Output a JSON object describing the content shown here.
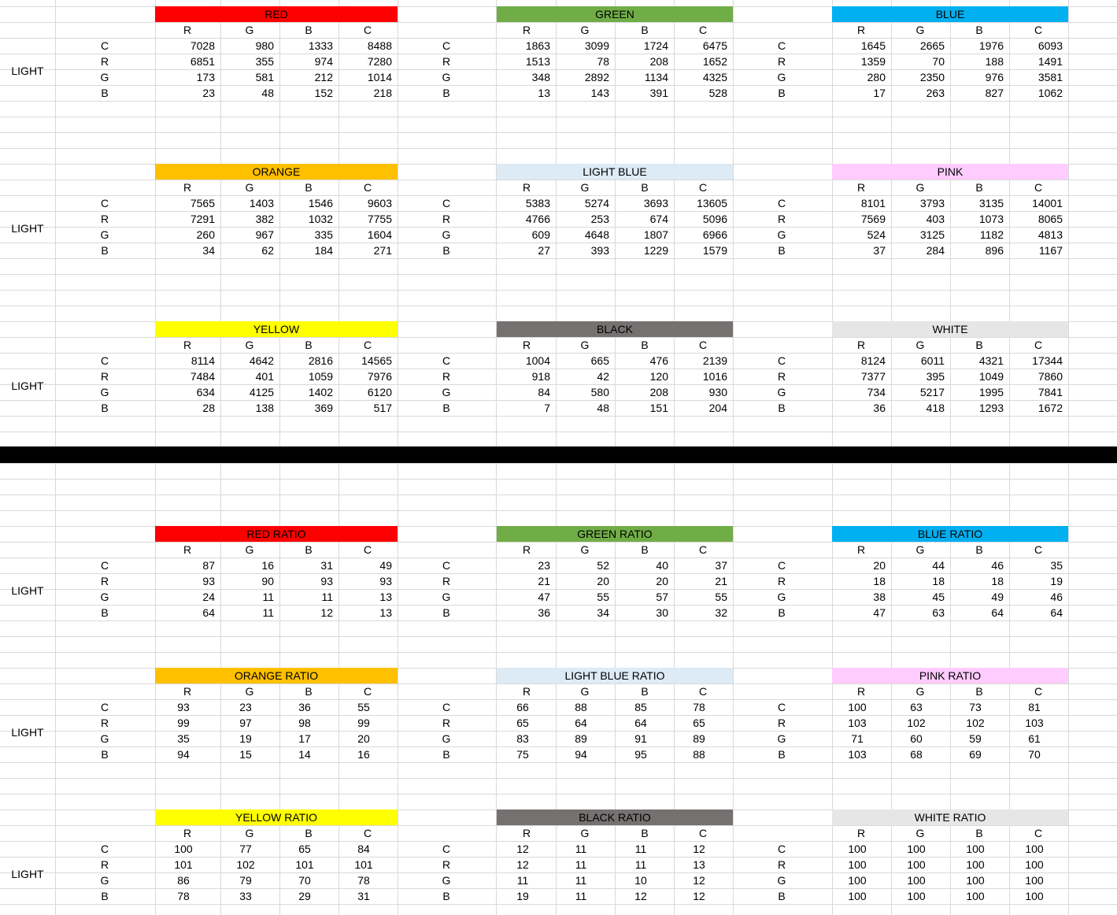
{
  "row_label": "LIGHT",
  "channel_labels": [
    "C",
    "R",
    "G",
    "B"
  ],
  "column_labels": [
    "R",
    "G",
    "B",
    "C"
  ],
  "divider_color": "#000000",
  "sections": [
    {
      "name": "raw",
      "blocks": [
        [
          {
            "title": "RED",
            "bg": "#FF0000",
            "values": [
              [
                "7028",
                "980",
                "1333",
                "8488"
              ],
              [
                "6851",
                "355",
                "974",
                "7280"
              ],
              [
                "173",
                "581",
                "212",
                "1014"
              ],
              [
                "23",
                "48",
                "152",
                "218"
              ]
            ]
          },
          {
            "title": "GREEN",
            "bg": "#70AD47",
            "values": [
              [
                "1863",
                "3099",
                "1724",
                "6475"
              ],
              [
                "1513",
                "78",
                "208",
                "1652"
              ],
              [
                "348",
                "2892",
                "1134",
                "4325"
              ],
              [
                "13",
                "143",
                "391",
                "528"
              ]
            ]
          },
          {
            "title": "BLUE",
            "bg": "#00B0F0",
            "values": [
              [
                "1645",
                "2665",
                "1976",
                "6093"
              ],
              [
                "1359",
                "70",
                "188",
                "1491"
              ],
              [
                "280",
                "2350",
                "976",
                "3581"
              ],
              [
                "17",
                "263",
                "827",
                "1062"
              ]
            ]
          }
        ],
        [
          {
            "title": "ORANGE",
            "bg": "#FFC000",
            "values": [
              [
                "7565",
                "1403",
                "1546",
                "9603"
              ],
              [
                "7291",
                "382",
                "1032",
                "7755"
              ],
              [
                "260",
                "967",
                "335",
                "1604"
              ],
              [
                "34",
                "62",
                "184",
                "271"
              ]
            ]
          },
          {
            "title": "LIGHT BLUE",
            "bg": "#DDEBF7",
            "values": [
              [
                "5383",
                "5274",
                "3693",
                "13605"
              ],
              [
                "4766",
                "253",
                "674",
                "5096"
              ],
              [
                "609",
                "4648",
                "1807",
                "6966"
              ],
              [
                "27",
                "393",
                "1229",
                "1579"
              ]
            ]
          },
          {
            "title": "PINK",
            "bg": "#FFCCFF",
            "values": [
              [
                "8101",
                "3793",
                "3135",
                "14001"
              ],
              [
                "7569",
                "403",
                "1073",
                "8065"
              ],
              [
                "524",
                "3125",
                "1182",
                "4813"
              ],
              [
                "37",
                "284",
                "896",
                "1167"
              ]
            ]
          }
        ],
        [
          {
            "title": "YELLOW",
            "bg": "#FFFF00",
            "values": [
              [
                "8114",
                "4642",
                "2816",
                "14565"
              ],
              [
                "7484",
                "401",
                "1059",
                "7976"
              ],
              [
                "634",
                "4125",
                "1402",
                "6120"
              ],
              [
                "28",
                "138",
                "369",
                "517"
              ]
            ]
          },
          {
            "title": "BLACK",
            "bg": "#767171",
            "values": [
              [
                "1004",
                "665",
                "476",
                "2139"
              ],
              [
                "918",
                "42",
                "120",
                "1016"
              ],
              [
                "84",
                "580",
                "208",
                "930"
              ],
              [
                "7",
                "48",
                "151",
                "204"
              ]
            ]
          },
          {
            "title": "WHITE",
            "bg": "#E7E6E6",
            "values": [
              [
                "8124",
                "6011",
                "4321",
                "17344"
              ],
              [
                "7377",
                "395",
                "1049",
                "7860"
              ],
              [
                "734",
                "5217",
                "1995",
                "7841"
              ],
              [
                "36",
                "418",
                "1293",
                "1672"
              ]
            ]
          }
        ]
      ]
    },
    {
      "name": "ratio",
      "blocks": [
        [
          {
            "title": "RED RATIO",
            "bg": "#FF0000",
            "values": [
              [
                "87",
                "16",
                "31",
                "49"
              ],
              [
                "93",
                "90",
                "93",
                "93"
              ],
              [
                "24",
                "11",
                "11",
                "13"
              ],
              [
                "64",
                "11",
                "12",
                "13"
              ]
            ]
          },
          {
            "title": "GREEN RATIO",
            "bg": "#70AD47",
            "values": [
              [
                "23",
                "52",
                "40",
                "37"
              ],
              [
                "21",
                "20",
                "20",
                "21"
              ],
              [
                "47",
                "55",
                "57",
                "55"
              ],
              [
                "36",
                "34",
                "30",
                "32"
              ]
            ]
          },
          {
            "title": "BLUE RATIO",
            "bg": "#00B0F0",
            "values": [
              [
                "20",
                "44",
                "46",
                "35"
              ],
              [
                "18",
                "18",
                "18",
                "19"
              ],
              [
                "38",
                "45",
                "49",
                "46"
              ],
              [
                "47",
                "63",
                "64",
                "64"
              ]
            ]
          }
        ],
        [
          {
            "title": "ORANGE RATIO",
            "bg": "#FFC000",
            "values": [
              [
                "93",
                "23",
                "36",
                "55"
              ],
              [
                "99",
                "97",
                "98",
                "99"
              ],
              [
                "35",
                "19",
                "17",
                "20"
              ],
              [
                "94",
                "15",
                "14",
                "16"
              ]
            ]
          },
          {
            "title": "LIGHT BLUE RATIO",
            "bg": "#DDEBF7",
            "values": [
              [
                "66",
                "88",
                "85",
                "78"
              ],
              [
                "65",
                "64",
                "64",
                "65"
              ],
              [
                "83",
                "89",
                "91",
                "89"
              ],
              [
                "75",
                "94",
                "95",
                "88"
              ]
            ]
          },
          {
            "title": "PINK RATIO",
            "bg": "#FFCCFF",
            "values": [
              [
                "100",
                "63",
                "73",
                "81"
              ],
              [
                "103",
                "102",
                "102",
                "103"
              ],
              [
                "71",
                "60",
                "59",
                "61"
              ],
              [
                "103",
                "68",
                "69",
                "70"
              ]
            ]
          }
        ],
        [
          {
            "title": "YELLOW RATIO",
            "bg": "#FFFF00",
            "values": [
              [
                "100",
                "77",
                "65",
                "84"
              ],
              [
                "101",
                "102",
                "101",
                "101"
              ],
              [
                "86",
                "79",
                "70",
                "78"
              ],
              [
                "78",
                "33",
                "29",
                "31"
              ]
            ]
          },
          {
            "title": "BLACK RATIO",
            "bg": "#767171",
            "values": [
              [
                "12",
                "11",
                "11",
                "12"
              ],
              [
                "12",
                "11",
                "11",
                "13"
              ],
              [
                "11",
                "11",
                "10",
                "12"
              ],
              [
                "19",
                "11",
                "12",
                "12"
              ]
            ]
          },
          {
            "title": "WHITE RATIO",
            "bg": "#E7E6E6",
            "values": [
              [
                "100",
                "100",
                "100",
                "100"
              ],
              [
                "100",
                "100",
                "100",
                "100"
              ],
              [
                "100",
                "100",
                "100",
                "100"
              ],
              [
                "100",
                "100",
                "100",
                "100"
              ]
            ]
          }
        ]
      ]
    }
  ]
}
